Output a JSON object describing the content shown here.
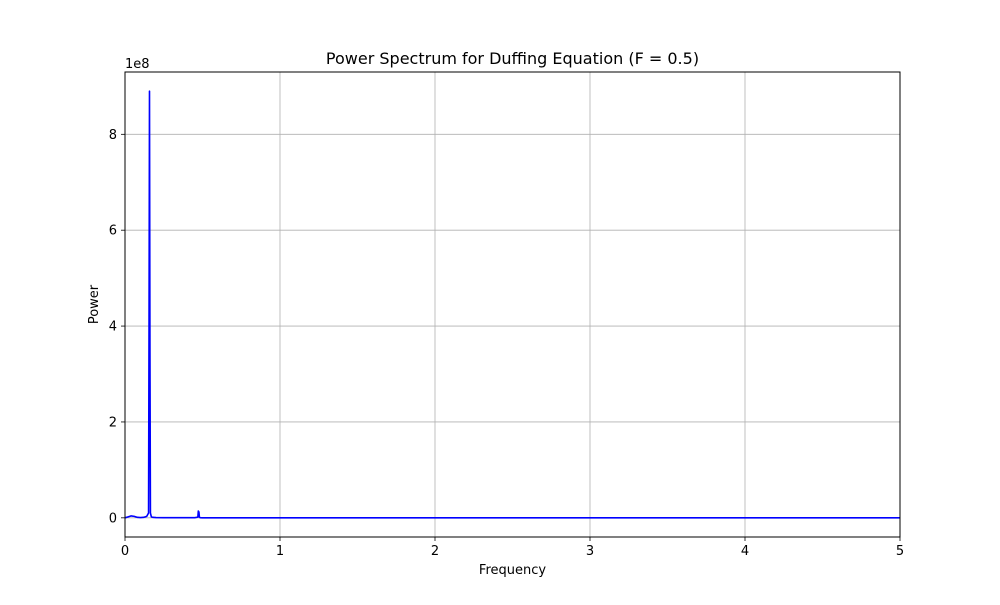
{
  "chart_data": {
    "type": "line",
    "title": "Power Spectrum for Duffing Equation (F = 0.5)",
    "xlabel": "Frequency",
    "ylabel": "Power",
    "y_offset_label": "1e8",
    "xlim": [
      0,
      5
    ],
    "ylim": [
      -40000000,
      930000000
    ],
    "x_ticks": [
      0,
      1,
      2,
      3,
      4,
      5
    ],
    "x_tick_labels": [
      "0",
      "1",
      "2",
      "3",
      "4",
      "5"
    ],
    "y_ticks": [
      0,
      200000000,
      400000000,
      600000000,
      800000000
    ],
    "y_tick_labels": [
      "0",
      "2",
      "4",
      "6",
      "8"
    ],
    "grid": true,
    "series": [
      {
        "color": "#0000ff",
        "x": [
          0,
          0.02,
          0.04,
          0.06,
          0.08,
          0.1,
          0.12,
          0.14,
          0.152,
          0.155,
          0.158,
          0.161,
          0.164,
          0.17,
          0.18,
          0.2,
          0.25,
          0.3,
          0.35,
          0.4,
          0.45,
          0.47,
          0.473,
          0.477,
          0.48,
          0.485,
          0.5,
          0.6,
          0.8,
          1.0,
          1.5,
          2.0,
          2.5,
          3.0,
          3.5,
          4.0,
          4.5,
          5.0
        ],
        "y": [
          0,
          2000000,
          4000000,
          3000000,
          1000000,
          500000,
          1000000,
          3000000,
          10000000,
          400000000,
          890000000,
          350000000,
          10000000,
          2000000,
          1000000,
          500000,
          300000,
          200000,
          200000,
          200000,
          300000,
          1500000,
          14000000,
          12000000,
          1500000,
          300000,
          100000,
          0,
          0,
          0,
          0,
          0,
          0,
          0,
          0,
          0,
          0,
          0
        ]
      }
    ]
  }
}
